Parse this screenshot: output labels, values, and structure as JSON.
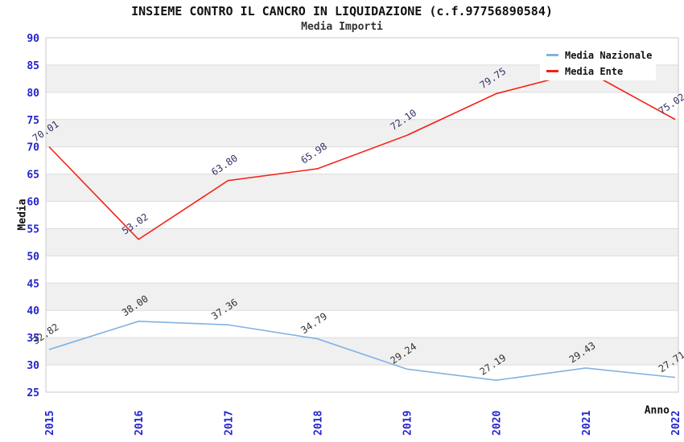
{
  "header": {
    "title": "INSIEME CONTRO IL CANCRO IN LIQUIDAZIONE (c.f.97756890584)",
    "subtitle": "Media Importi"
  },
  "axes": {
    "y_title": "Media",
    "x_title": "Anno"
  },
  "legend": {
    "items": [
      {
        "label": "Media Nazionale",
        "color": "#7fb3e3"
      },
      {
        "label": "Media Ente",
        "color": "#f42015"
      }
    ]
  },
  "colors": {
    "tick_blue": "#2424cc",
    "band_gray": "#f0f0f0",
    "band_white": "#ffffff",
    "grid_line": "#dcdcdc",
    "plot_border": "#c9c9c9",
    "label_dark": "#333333",
    "label_navy": "#333366"
  },
  "chart_data": {
    "type": "line",
    "title": "INSIEME CONTRO IL CANCRO IN LIQUIDAZIONE (c.f.97756890584)",
    "subtitle": "Media Importi",
    "xlabel": "Anno",
    "ylabel": "Media",
    "categories": [
      "2015",
      "2016",
      "2017",
      "2018",
      "2019",
      "2020",
      "2021",
      "2022"
    ],
    "series": [
      {
        "name": "Media Nazionale",
        "color": "#7fb3e3",
        "label_color": "#333333",
        "values": [
          32.82,
          38.0,
          37.36,
          34.79,
          29.24,
          27.19,
          29.43,
          27.71
        ],
        "labels": [
          "32.82",
          "38.00",
          "37.36",
          "34.79",
          "29.24",
          "27.19",
          "29.43",
          "27.71"
        ]
      },
      {
        "name": "Media Ente",
        "color": "#f42015",
        "label_color": "#333366",
        "values": [
          70.01,
          53.02,
          63.8,
          65.98,
          72.1,
          79.75,
          84.0,
          75.02
        ],
        "labels": [
          "70.01",
          "53.02",
          "63.80",
          "65.98",
          "72.10",
          "79.75",
          "",
          "75.02"
        ]
      }
    ],
    "ylim": [
      25,
      90
    ],
    "ytick_step": 5,
    "yticks": [
      90,
      85,
      80,
      75,
      70,
      65,
      60,
      55,
      50,
      45,
      40,
      35,
      30,
      25
    ],
    "grid": "horizontal-bands-alternating",
    "legend_position": "top-right",
    "note_2021_media_ente": "label hidden behind legend box; value estimated from line position"
  }
}
